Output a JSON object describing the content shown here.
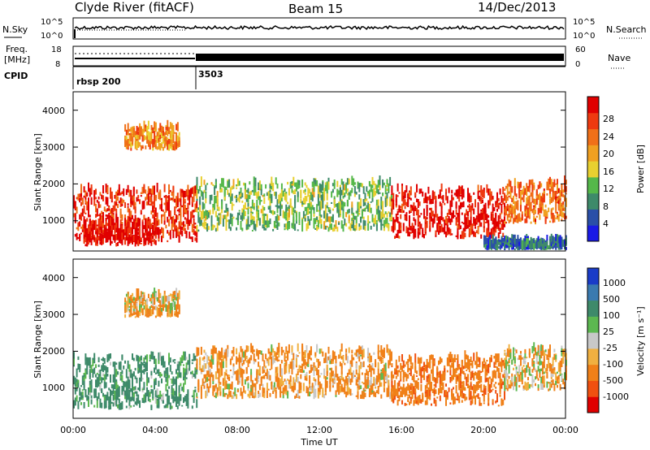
{
  "header": {
    "station": "Clyde River (fitACF)",
    "beam": "Beam 15",
    "date": "14/Dec/2013"
  },
  "noise_panel": {
    "left_label": "N.Sky",
    "right_label": "N.Search",
    "left_ticks": [
      "10^5",
      "10^0"
    ],
    "right_ticks": [
      "10^5",
      "10^0"
    ]
  },
  "freq_panel": {
    "left_label_1": "Freq.",
    "left_label_2": "[MHz]",
    "left_ticks": [
      "18",
      "8"
    ],
    "right_label": "Nave",
    "right_ticks": [
      "60",
      "0"
    ]
  },
  "cpid_panel": {
    "label": "CPID",
    "entries": [
      {
        "text": "rbsp 200",
        "start_hour": 0
      },
      {
        "text": "3503",
        "start_hour": 6
      }
    ]
  },
  "x_axis": {
    "label": "Time UT",
    "ticks": [
      "00:00",
      "04:00",
      "08:00",
      "12:00",
      "16:00",
      "20:00",
      "00:00"
    ]
  },
  "power_panel": {
    "ylabel": "Slant Range [km]",
    "yticks": [
      "1000",
      "2000",
      "3000",
      "4000"
    ],
    "colorbar_label": "Power [dB]",
    "colorbar_ticks": [
      "4",
      "8",
      "12",
      "16",
      "20",
      "24",
      "28"
    ],
    "colors": [
      "#1a1ae6",
      "#2a4fa8",
      "#3e8a6a",
      "#55b84a",
      "#e8d030",
      "#f0a020",
      "#f07018",
      "#ee3a10",
      "#e00000"
    ]
  },
  "velocity_panel": {
    "ylabel": "Slant Range [km]",
    "yticks": [
      "1000",
      "2000",
      "3000",
      "4000"
    ],
    "colorbar_label": "Velocity [m s⁻¹]",
    "colorbar_ticks": [
      "1000",
      "500",
      "100",
      "25",
      "-25",
      "-100",
      "-500",
      "-1000"
    ],
    "colors": [
      "#1a3cc8",
      "#3a7ab0",
      "#3e8a6a",
      "#5cb850",
      "#c8c8c8",
      "#f0b040",
      "#f08018",
      "#f05010",
      "#e00000"
    ]
  },
  "chart_data": [
    {
      "type": "heatmap",
      "title": "Power",
      "x_range_hours": [
        0,
        24
      ],
      "y_range_km": [
        180,
        4500
      ],
      "colorbar_range_db": [
        0,
        30
      ],
      "regions": [
        {
          "t0": 0.0,
          "t1": 6.0,
          "r0": 400,
          "r1": 1800,
          "value": 26
        },
        {
          "t0": 0.5,
          "t1": 4.0,
          "r0": 300,
          "r1": 900,
          "value": 29
        },
        {
          "t0": 2.5,
          "t1": 5.2,
          "r0": 2900,
          "r1": 3500,
          "value": 20
        },
        {
          "t0": 6.0,
          "t1": 15.5,
          "r0": 700,
          "r1": 2000,
          "value": 12
        },
        {
          "t0": 15.5,
          "t1": 21.0,
          "r0": 500,
          "r1": 1800,
          "value": 28
        },
        {
          "t0": 21.0,
          "t1": 24.0,
          "r0": 900,
          "r1": 2000,
          "value": 22
        },
        {
          "t0": 20.0,
          "t1": 24.0,
          "r0": 200,
          "r1": 400,
          "value": 6
        }
      ]
    },
    {
      "type": "heatmap",
      "title": "Velocity",
      "x_range_hours": [
        0,
        24
      ],
      "y_range_km": [
        180,
        4500
      ],
      "colorbar_range_ms": [
        -1000,
        1000
      ],
      "regions": [
        {
          "t0": 0.0,
          "t1": 6.0,
          "r0": 400,
          "r1": 1800,
          "value": 200
        },
        {
          "t0": 2.5,
          "t1": 5.2,
          "r0": 2900,
          "r1": 3500,
          "value": -100
        },
        {
          "t0": 6.0,
          "t1": 15.5,
          "r0": 700,
          "r1": 2000,
          "value": -150
        },
        {
          "t0": 15.5,
          "t1": 21.0,
          "r0": 500,
          "r1": 1800,
          "value": -400
        },
        {
          "t0": 21.0,
          "t1": 24.0,
          "r0": 900,
          "r1": 2000,
          "value": -100
        }
      ]
    }
  ]
}
